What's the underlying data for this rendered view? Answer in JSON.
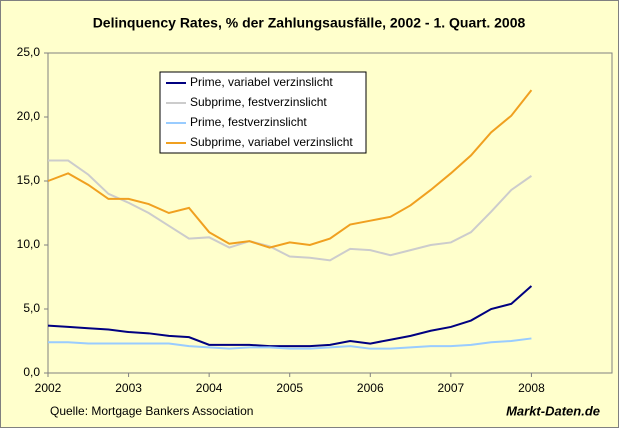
{
  "chart_data": {
    "type": "line",
    "title": "Delinquency Rates,  % der Zahlungsausfälle, 2002 - 1. Quart. 2008",
    "source": "Quelle: Mortgage Bankers Association",
    "brand": "Markt-Daten.de",
    "x": [
      2002,
      2002.25,
      2002.5,
      2002.75,
      2003,
      2003.25,
      2003.5,
      2003.75,
      2004,
      2004.25,
      2004.5,
      2004.75,
      2005,
      2005.25,
      2005.5,
      2005.75,
      2006,
      2006.25,
      2006.5,
      2006.75,
      2007,
      2007.25,
      2007.5,
      2007.75,
      2008
    ],
    "series": [
      {
        "name": "Prime, variabel verzinslicht",
        "color": "#000080",
        "values": [
          3.7,
          3.6,
          3.5,
          3.4,
          3.2,
          3.1,
          2.9,
          2.8,
          2.2,
          2.2,
          2.2,
          2.1,
          2.1,
          2.1,
          2.2,
          2.5,
          2.3,
          2.6,
          2.9,
          3.3,
          3.6,
          4.1,
          5.0,
          5.4,
          6.8
        ]
      },
      {
        "name": "Subprime, festverzinslicht",
        "color": "#cccccc",
        "values": [
          16.6,
          16.6,
          15.5,
          14.0,
          13.3,
          12.5,
          11.5,
          10.5,
          10.6,
          9.8,
          10.3,
          9.9,
          9.1,
          9.0,
          8.8,
          9.7,
          9.6,
          9.2,
          9.6,
          10.0,
          10.2,
          11.0,
          12.6,
          14.3,
          15.4
        ]
      },
      {
        "name": "Prime, festverzinslicht",
        "color": "#99ccff",
        "values": [
          2.4,
          2.4,
          2.3,
          2.3,
          2.3,
          2.3,
          2.3,
          2.1,
          2.0,
          1.9,
          2.0,
          2.0,
          1.9,
          1.9,
          2.0,
          2.1,
          1.9,
          1.9,
          2.0,
          2.1,
          2.1,
          2.2,
          2.4,
          2.5,
          2.7
        ]
      },
      {
        "name": "Subprime, variabel verzinslicht",
        "color": "#f0a020",
        "values": [
          15.0,
          15.6,
          14.7,
          13.6,
          13.6,
          13.2,
          12.5,
          12.9,
          11.0,
          10.1,
          10.3,
          9.8,
          10.2,
          10.0,
          10.5,
          11.6,
          11.9,
          12.2,
          13.1,
          14.3,
          15.6,
          17.0,
          18.8,
          20.1,
          22.1
        ]
      }
    ],
    "xlim": [
      2002,
      2009
    ],
    "xticks": [
      2002,
      2003,
      2004,
      2005,
      2006,
      2007,
      2008
    ],
    "ylim": [
      0,
      25
    ],
    "yticks": [
      {
        "value": 0,
        "label": "0,0"
      },
      {
        "value": 5,
        "label": "5,0"
      },
      {
        "value": 10,
        "label": "10,0"
      },
      {
        "value": 15,
        "label": "15,0"
      },
      {
        "value": 20,
        "label": "20,0"
      },
      {
        "value": 25,
        "label": "25,0"
      }
    ],
    "legend": "top-left"
  }
}
